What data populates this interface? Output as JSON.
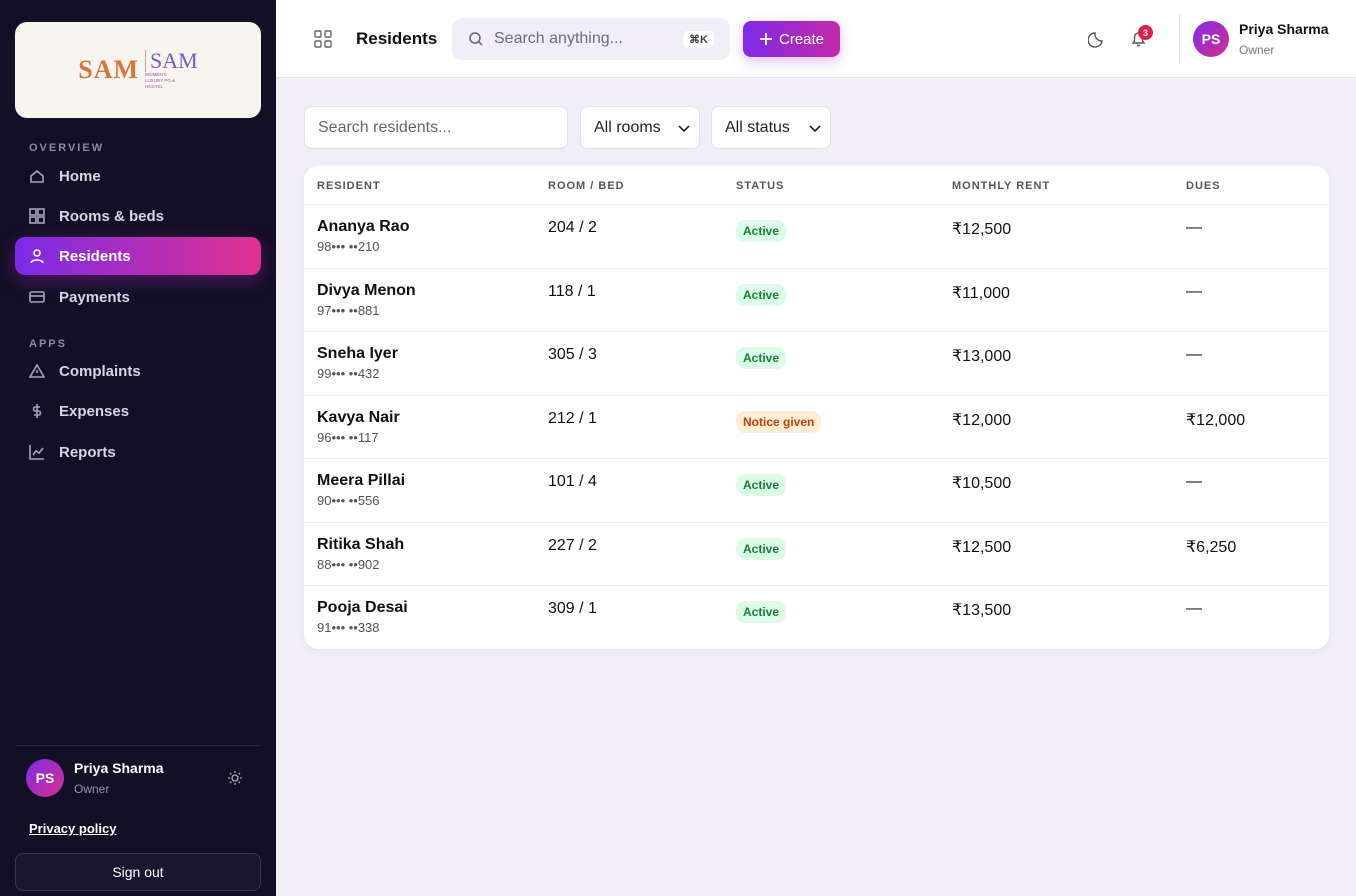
{
  "sidebar": {
    "logo": {
      "mark": "SAM",
      "name": "SAM",
      "tagline": "WOMEN'S LUXURY PG & HOSTEL"
    },
    "sections": [
      {
        "label": "OVERVIEW",
        "items": [
          "Home",
          "Rooms & beds",
          "Residents",
          "Payments"
        ]
      },
      {
        "label": "APPS",
        "items": [
          "Complaints",
          "Expenses",
          "Reports"
        ]
      }
    ],
    "user": {
      "initials": "PS",
      "name": "Priya Sharma",
      "role": "Owner"
    },
    "privacy": "Privacy policy",
    "sign_out": "Sign out"
  },
  "header": {
    "title": "Residents",
    "search": "Search anything...",
    "shortcut": "⌘K",
    "create": "Create",
    "notifications": "3",
    "user": {
      "initials": "PS",
      "name": "Priya Sharma",
      "role": "Owner"
    }
  },
  "filters": {
    "search": "Search residents...",
    "rooms": "All rooms",
    "status": "All status"
  },
  "table": {
    "columns": [
      "RESIDENT",
      "ROOM / BED",
      "STATUS",
      "MONTHLY RENT",
      "DUES"
    ],
    "rows": [
      {
        "name": "Ananya Rao",
        "phone": "98••• ••210",
        "room": "204 / 2",
        "status": "Active",
        "badge_color": "green",
        "rent": "₹12,500",
        "dues": "—"
      },
      {
        "name": "Divya Menon",
        "phone": "97••• ••881",
        "room": "118 / 1",
        "status": "Active",
        "badge_color": "green",
        "rent": "₹11,000",
        "dues": "—"
      },
      {
        "name": "Sneha Iyer",
        "phone": "99••• ••432",
        "room": "305 / 3",
        "status": "Active",
        "badge_color": "green",
        "rent": "₹13,000",
        "dues": "—"
      },
      {
        "name": "Kavya Nair",
        "phone": "96••• ••117",
        "room": "212 / 1",
        "status": "Notice given",
        "badge_color": "orange",
        "rent": "₹12,000",
        "dues": "₹12,000"
      },
      {
        "name": "Meera Pillai",
        "phone": "90••• ••556",
        "room": "101 / 4",
        "status": "Active",
        "badge_color": "green",
        "rent": "₹10,500",
        "dues": "—"
      },
      {
        "name": "Ritika Shah",
        "phone": "88••• ••902",
        "room": "227 / 2",
        "status": "Active",
        "badge_color": "green",
        "rent": "₹12,500",
        "dues": "₹6,250"
      },
      {
        "name": "Pooja Desai",
        "phone": "91••• ••338",
        "room": "309 / 1",
        "status": "Active",
        "badge_color": "green",
        "rent": "₹13,500",
        "dues": "—"
      }
    ]
  },
  "active_nav": "Residents"
}
